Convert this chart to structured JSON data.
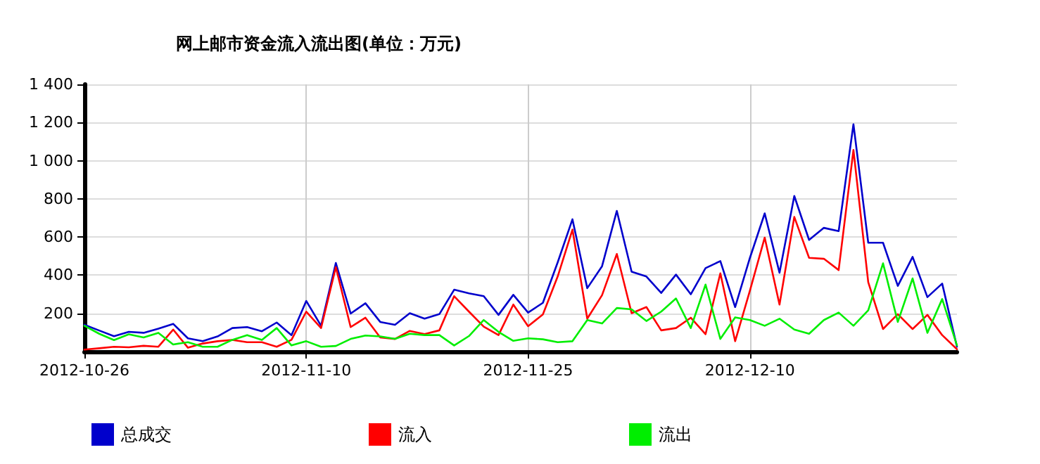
{
  "chart_data": {
    "type": "line",
    "title": "网上邮市资金流入流出图(单位：万元)",
    "x": [
      "2012-10-26",
      "2012-10-27",
      "2012-10-28",
      "2012-10-29",
      "2012-10-30",
      "2012-10-31",
      "2012-11-01",
      "2012-11-02",
      "2012-11-03",
      "2012-11-04",
      "2012-11-05",
      "2012-11-06",
      "2012-11-07",
      "2012-11-08",
      "2012-11-09",
      "2012-11-10",
      "2012-11-11",
      "2012-11-12",
      "2012-11-13",
      "2012-11-14",
      "2012-11-15",
      "2012-11-16",
      "2012-11-17",
      "2012-11-18",
      "2012-11-19",
      "2012-11-20",
      "2012-11-21",
      "2012-11-22",
      "2012-11-23",
      "2012-11-24",
      "2012-11-25",
      "2012-11-26",
      "2012-11-27",
      "2012-11-28",
      "2012-11-29",
      "2012-11-30",
      "2012-12-01",
      "2012-12-02",
      "2012-12-03",
      "2012-12-04",
      "2012-12-05",
      "2012-12-06",
      "2012-12-07",
      "2012-12-08",
      "2012-12-09",
      "2012-12-10",
      "2012-12-11",
      "2012-12-12",
      "2012-12-13",
      "2012-12-14",
      "2012-12-15",
      "2012-12-16",
      "2012-12-17",
      "2012-12-18",
      "2012-12-19",
      "2012-12-20",
      "2012-12-21",
      "2012-12-22",
      "2012-12-23",
      "2012-12-24"
    ],
    "series": [
      {
        "name": "总成交",
        "color": "#0000cc",
        "values": [
          140,
          110,
          80,
          103,
          98,
          120,
          145,
          69,
          54,
          79,
          123,
          128,
          106,
          152,
          86,
          265,
          135,
          464,
          199,
          253,
          155,
          140,
          201,
          172,
          196,
          324,
          305,
          290,
          192,
          297,
          204,
          255,
          467,
          693,
          332,
          447,
          737,
          418,
          393,
          307,
          403,
          300,
          437,
          474,
          233,
          491,
          724,
          413,
          815,
          585,
          648,
          631,
          1191,
          570,
          570,
          344,
          496,
          285,
          356,
          25
        ]
      },
      {
        "name": "流入",
        "color": "#ff0000",
        "values": [
          10,
          17,
          25,
          22,
          30,
          25,
          115,
          20,
          42,
          54,
          61,
          49,
          49,
          25,
          61,
          209,
          123,
          442,
          128,
          177,
          74,
          66,
          108,
          91,
          111,
          290,
          209,
          130,
          86,
          246,
          133,
          194,
          393,
          639,
          172,
          295,
          511,
          201,
          233,
          111,
          123,
          177,
          91,
          410,
          54,
          319,
          597,
          246,
          705,
          491,
          486,
          427,
          1056,
          363,
          118,
          196,
          118,
          192,
          86,
          12
        ]
      },
      {
        "name": "流出",
        "color": "#00ee00",
        "values": [
          135,
          93,
          60,
          90,
          74,
          98,
          37,
          49,
          25,
          25,
          61,
          86,
          61,
          123,
          32,
          54,
          25,
          29,
          66,
          84,
          79,
          66,
          93,
          86,
          86,
          32,
          81,
          165,
          103,
          56,
          69,
          64,
          49,
          54,
          165,
          147,
          228,
          221,
          160,
          209,
          278,
          123,
          351,
          66,
          179,
          165,
          135,
          172,
          115,
          93,
          165,
          204,
          135,
          216,
          462,
          155,
          383,
          98,
          275,
          32
        ]
      }
    ],
    "xlim": [
      "2012-10-26",
      "2012-12-24"
    ],
    "xticks": [
      "2012-10-26",
      "2012-11-10",
      "2012-11-25",
      "2012-12-10"
    ],
    "ylim": [
      0,
      1400
    ],
    "yticks": [
      {
        "value": 200,
        "label": "200"
      },
      {
        "value": 400,
        "label": "400"
      },
      {
        "value": 600,
        "label": "600"
      },
      {
        "value": 800,
        "label": "800"
      },
      {
        "value": 1000,
        "label": "1 000"
      },
      {
        "value": 1200,
        "label": "1 200"
      },
      {
        "value": 1400,
        "label": "1 400"
      }
    ],
    "grid": true,
    "legend": "bottom",
    "marker": "none",
    "line_style": "solid"
  }
}
